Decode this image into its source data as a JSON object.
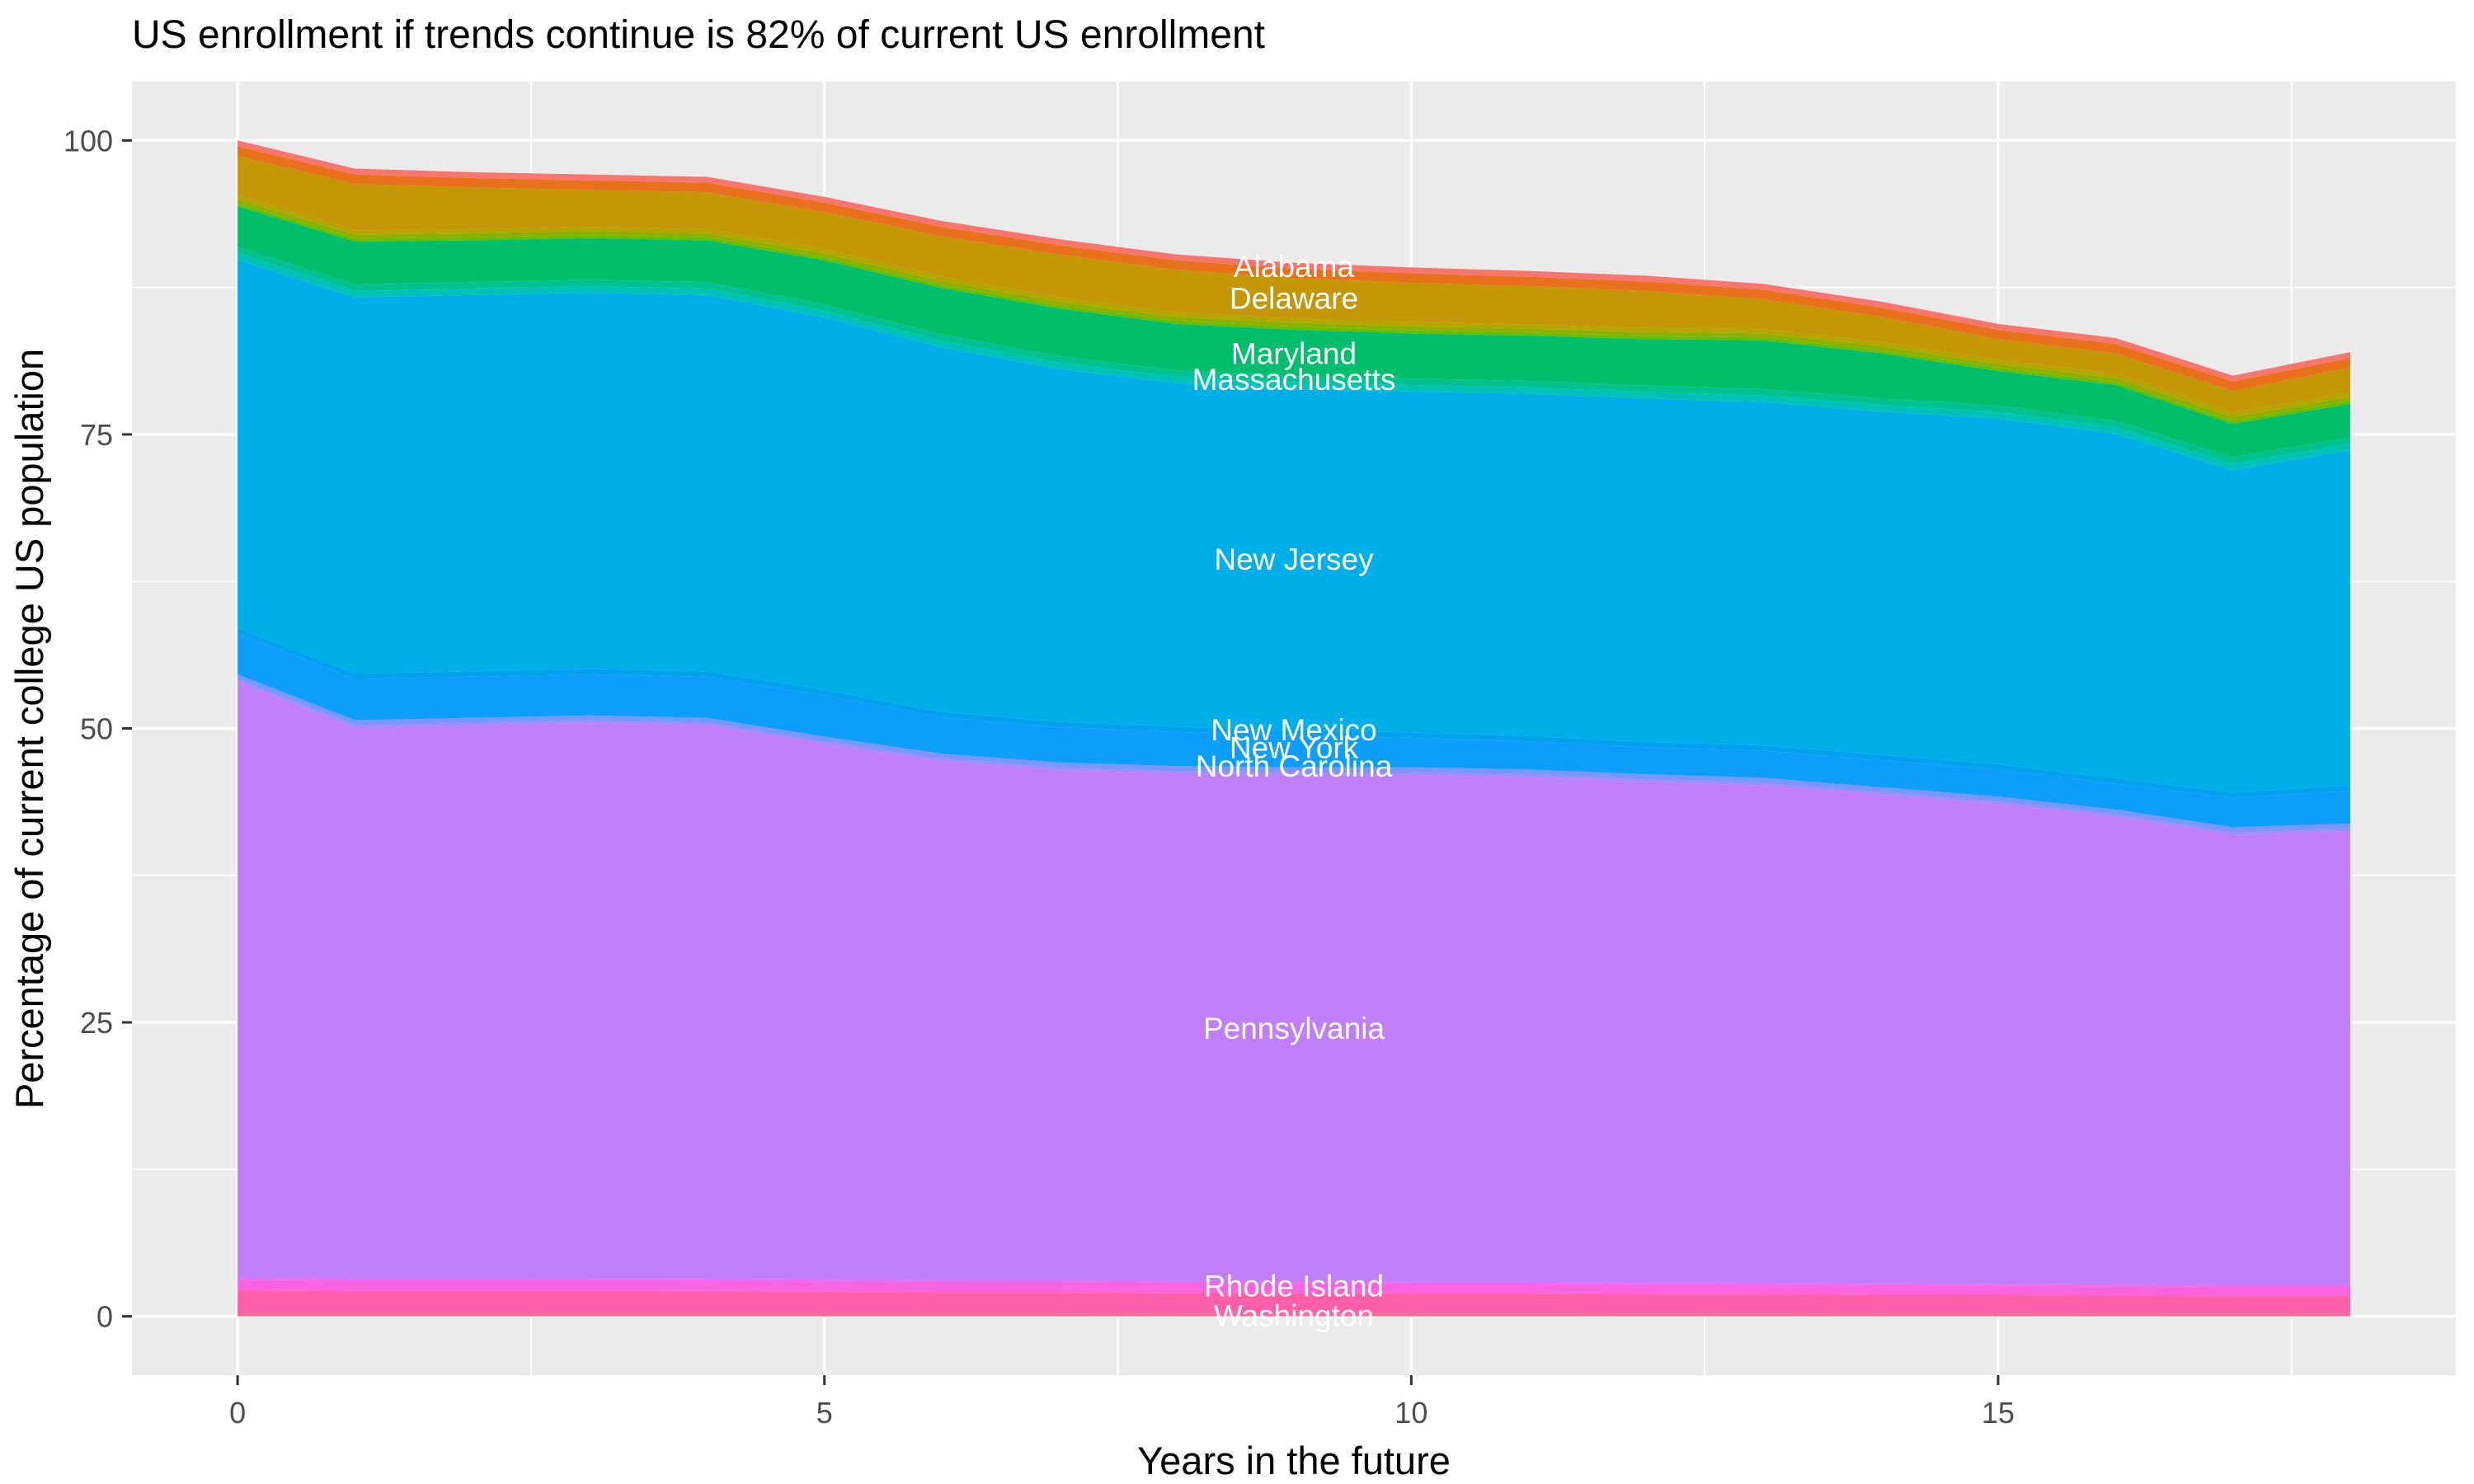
{
  "chart": {
    "title": "US enrollment if trends continue is 82% of current US enrollment",
    "xlabel": "Years in the future",
    "ylabel": "Percentage of current college US population"
  },
  "chart_data": {
    "type": "area",
    "stacked": true,
    "title": "US enrollment if trends continue is 82% of current US enrollment",
    "xlabel": "Years in the future",
    "ylabel": "Percentage of current college US population",
    "x": [
      0,
      1,
      2,
      3,
      4,
      5,
      6,
      7,
      8,
      9,
      10,
      11,
      12,
      13,
      14,
      15,
      16,
      17,
      18
    ],
    "x_ticks": [
      0,
      5,
      10,
      15
    ],
    "x_minor_ticks": [
      2.5,
      7.5,
      12.5,
      17.5
    ],
    "y_ticks": [
      0,
      25,
      50,
      75,
      100
    ],
    "y_minor_ticks": [
      12.5,
      37.5,
      62.5,
      87.5
    ],
    "x_range_expanded": [
      -0.9,
      18.9
    ],
    "y_range_expanded": [
      -5,
      105
    ],
    "grid": true,
    "legend_position": "none",
    "panel_bg": "#EBEBEB",
    "grid_color": "#FFFFFF",
    "tick_label_color": "#4D4D4D",
    "tick_mark_color": "#333333",
    "state_label_color": "#FFFFFF",
    "final_total_percent": 82,
    "label_x": 9,
    "series": [
      {
        "name": "Other states (thin, below Washington)",
        "slug": "others-bottom",
        "color": "#FF6C91",
        "values": [
          0.25,
          0.25,
          0.25,
          0.25,
          0.25,
          0.25,
          0.25,
          0.25,
          0.25,
          0.25,
          0.25,
          0.25,
          0.25,
          0.25,
          0.25,
          0.25,
          0.25,
          0.25,
          0.25
        ]
      },
      {
        "name": "Washington",
        "slug": "washington",
        "color": "#FF5FA8",
        "label": "Washington",
        "label_y": 0.1,
        "values": [
          1.9,
          1.85,
          1.85,
          1.85,
          1.85,
          1.8,
          1.75,
          1.75,
          1.7,
          1.7,
          1.65,
          1.65,
          1.6,
          1.6,
          1.55,
          1.55,
          1.5,
          1.45,
          1.45
        ]
      },
      {
        "name": "Other states (thin, WA-RI)",
        "slug": "others-wa-ri",
        "color": "#FF61C8",
        "values": [
          0.15,
          0.15,
          0.15,
          0.15,
          0.15,
          0.15,
          0.15,
          0.15,
          0.15,
          0.15,
          0.15,
          0.15,
          0.15,
          0.15,
          0.15,
          0.15,
          0.15,
          0.15,
          0.15
        ]
      },
      {
        "name": "Rhode Island",
        "slug": "rhode-island",
        "color": "#F763E0",
        "label": "Rhode Island",
        "label_y": 2.6,
        "values": [
          0.8,
          0.79,
          0.79,
          0.79,
          0.78,
          0.77,
          0.77,
          0.76,
          0.76,
          0.74,
          0.73,
          0.73,
          0.73,
          0.7,
          0.7,
          0.65,
          0.65,
          0.65,
          0.65
        ]
      },
      {
        "name": "Other states (thin, RI-PA)",
        "slug": "others-ri-pa",
        "color": "#E76BF3",
        "values": [
          0.15,
          0.15,
          0.15,
          0.15,
          0.15,
          0.15,
          0.15,
          0.15,
          0.15,
          0.15,
          0.15,
          0.15,
          0.15,
          0.15,
          0.15,
          0.15,
          0.15,
          0.15,
          0.15
        ]
      },
      {
        "name": "Pennsylvania",
        "slug": "pennsylvania",
        "color": "#C17EFA",
        "label": "Pennsylvania",
        "label_y": 24.5,
        "values": [
          50.7,
          46.86,
          47.06,
          47.26,
          47.07,
          45.53,
          44.13,
          43.39,
          43.14,
          43.06,
          43.12,
          42.92,
          42.57,
          42.3,
          41.55,
          40.8,
          39.75,
          38.3,
          38.6
        ]
      },
      {
        "name": "Other states (thin, PA-NC)",
        "slug": "others-pa-nc",
        "color": "#A58AFF",
        "values": [
          0.2,
          0.2,
          0.2,
          0.2,
          0.2,
          0.2,
          0.2,
          0.2,
          0.2,
          0.2,
          0.2,
          0.2,
          0.2,
          0.2,
          0.2,
          0.2,
          0.2,
          0.2,
          0.2
        ]
      },
      {
        "name": "North Carolina",
        "slug": "north-carolina",
        "color": "#7997FF",
        "label": "North Carolina",
        "label_y": 46.8,
        "values": [
          0.45,
          0.45,
          0.45,
          0.45,
          0.45,
          0.45,
          0.45,
          0.45,
          0.45,
          0.45,
          0.45,
          0.45,
          0.45,
          0.45,
          0.45,
          0.45,
          0.45,
          0.45,
          0.45
        ]
      },
      {
        "name": "New York",
        "slug": "new-york",
        "color": "#0D9DFA",
        "label": "New York",
        "label_y": 48.4,
        "values": [
          3.5,
          3.5,
          3.5,
          3.5,
          3.5,
          3.5,
          3.1,
          3.0,
          2.9,
          2.7,
          2.5,
          2.4,
          2.3,
          2.3,
          2.3,
          2.3,
          2.2,
          2.5,
          2.8
        ]
      },
      {
        "name": "New Mexico",
        "slug": "new-mexico",
        "color": "#00A2F0",
        "label": "New Mexico",
        "label_y": 49.9,
        "values": [
          0.45,
          0.45,
          0.45,
          0.45,
          0.45,
          0.45,
          0.45,
          0.45,
          0.45,
          0.45,
          0.45,
          0.45,
          0.45,
          0.45,
          0.45,
          0.45,
          0.45,
          0.45,
          0.45
        ]
      },
      {
        "name": "New Jersey",
        "slug": "new-jersey",
        "color": "#00AEE8",
        "label": "New Jersey",
        "label_y": 64.4,
        "values": [
          31.3,
          32.0,
          32.0,
          32.0,
          32.0,
          31.7,
          31.0,
          30.0,
          29.2,
          29.0,
          29.0,
          29.1,
          29.2,
          29.2,
          29.2,
          29.4,
          29.3,
          27.4,
          28.5
        ]
      },
      {
        "name": "Other states (thin, NJ-MA)",
        "slug": "others-nj-ma",
        "color": "#00C2B8",
        "values": [
          0.55,
          0.55,
          0.55,
          0.55,
          0.55,
          0.55,
          0.55,
          0.55,
          0.55,
          0.55,
          0.55,
          0.55,
          0.55,
          0.55,
          0.55,
          0.55,
          0.55,
          0.55,
          0.55
        ]
      },
      {
        "name": "Massachusetts",
        "slug": "massachusetts",
        "color": "#00C290",
        "label": "Massachusetts",
        "label_y": 79.7,
        "values": [
          0.55,
          0.55,
          0.55,
          0.55,
          0.55,
          0.55,
          0.55,
          0.55,
          0.55,
          0.55,
          0.55,
          0.55,
          0.55,
          0.55,
          0.55,
          0.55,
          0.55,
          0.55,
          0.55
        ]
      },
      {
        "name": "Maryland",
        "slug": "maryland",
        "color": "#00BE6B",
        "label": "Maryland",
        "label_y": 81.9,
        "values": [
          3.45,
          3.65,
          3.55,
          3.55,
          3.55,
          3.75,
          3.95,
          4.05,
          3.95,
          3.95,
          3.85,
          3.85,
          3.95,
          4.15,
          3.85,
          2.95,
          3.05,
          2.85,
          2.85
        ]
      },
      {
        "name": "Other states (thin, above MD 1)",
        "slug": "others-md-1",
        "color": "#64BE00",
        "values": [
          0.25,
          0.25,
          0.25,
          0.25,
          0.25,
          0.25,
          0.25,
          0.25,
          0.25,
          0.25,
          0.25,
          0.25,
          0.25,
          0.25,
          0.25,
          0.25,
          0.25,
          0.25,
          0.25
        ]
      },
      {
        "name": "Other states (thin, above MD 2)",
        "slug": "others-md-2",
        "color": "#8DB000",
        "values": [
          0.35,
          0.35,
          0.35,
          0.35,
          0.35,
          0.35,
          0.35,
          0.35,
          0.35,
          0.35,
          0.35,
          0.35,
          0.35,
          0.35,
          0.35,
          0.35,
          0.35,
          0.35,
          0.35
        ]
      },
      {
        "name": "Other states (thin, MD-DE)",
        "slug": "others-md-de",
        "color": "#B4A500",
        "values": [
          0.35,
          0.35,
          0.35,
          0.35,
          0.35,
          0.35,
          0.35,
          0.35,
          0.35,
          0.35,
          0.35,
          0.35,
          0.35,
          0.35,
          0.35,
          0.35,
          0.35,
          0.35,
          0.35
        ]
      },
      {
        "name": "Delaware",
        "slug": "delaware",
        "color": "#C49708",
        "label": "Delaware",
        "label_y": 86.6,
        "values": [
          3.35,
          3.95,
          3.55,
          3.15,
          3.15,
          3.15,
          3.45,
          3.65,
          3.65,
          3.45,
          3.35,
          3.25,
          3.15,
          2.55,
          2.15,
          1.75,
          1.75,
          1.85,
          2.15
        ]
      },
      {
        "name": "Other states (thin, DE-AL)",
        "slug": "others-de-al",
        "color": "#E8701A",
        "values": [
          0.8,
          0.8,
          0.8,
          0.8,
          0.8,
          0.8,
          0.8,
          0.8,
          0.8,
          0.8,
          0.8,
          0.8,
          0.8,
          0.8,
          0.8,
          0.8,
          0.8,
          0.8,
          0.8
        ]
      },
      {
        "name": "Alabama",
        "slug": "alabama",
        "color": "#F8766D",
        "label": "Alabama",
        "label_y": 89.3,
        "values": [
          0.5,
          0.5,
          0.5,
          0.5,
          0.5,
          0.5,
          0.5,
          0.5,
          0.5,
          0.5,
          0.5,
          0.5,
          0.5,
          0.5,
          0.5,
          0.5,
          0.5,
          0.5,
          0.5
        ]
      }
    ]
  }
}
